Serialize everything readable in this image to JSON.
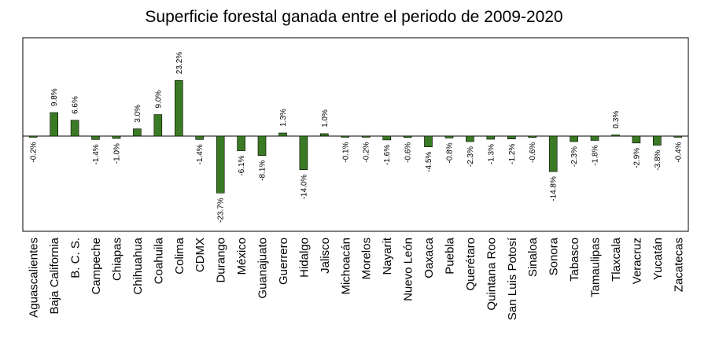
{
  "chart_data": {
    "type": "bar",
    "title": "Superficie forestal ganada entre el periodo de 2009-2020",
    "xlabel": "",
    "ylabel": "",
    "ylim": [
      -28,
      28
    ],
    "grid": false,
    "legend": "none",
    "bar_color": "#3b7a24",
    "categories": [
      "Aguascalientes",
      "Baja California",
      "B. C. S.",
      "Campeche",
      "Chiapas",
      "Chihuahua",
      "Coahuila",
      "Colima",
      "CDMX",
      "Durango",
      "México",
      "Guanajuato",
      "Guerrero",
      "Hidalgo",
      "Jalisco",
      "Michoacán",
      "Morelos",
      "Nayarit",
      "Nuevo León",
      "Oaxaca",
      "Puebla",
      "Querétaro",
      "Quintana Roo",
      "San Luis Potosí",
      "Sinaloa",
      "Sonora",
      "Tabasco",
      "Tamaulipas",
      "Tlaxcala",
      "Veracruz",
      "Yucatán",
      "Zacatecas"
    ],
    "values": [
      -0.2,
      9.8,
      6.6,
      -1.4,
      -1.0,
      3.0,
      9.0,
      23.2,
      -1.4,
      -23.7,
      -6.1,
      -8.1,
      1.3,
      -14.0,
      1.0,
      -0.1,
      -0.2,
      -1.6,
      -0.6,
      -4.5,
      -0.8,
      -2.3,
      -1.3,
      -1.2,
      -0.6,
      -14.8,
      -2.3,
      -1.8,
      0.3,
      -2.9,
      -3.8,
      -0.4
    ],
    "data_labels": [
      "-0.2%",
      "9.8%",
      "6.6%",
      "-1.4%",
      "-1.0%",
      "3.0%",
      "9.0%",
      "23.2%",
      "-1.4%",
      "-23.7%",
      "-6.1%",
      "-8.1%",
      "1.3%",
      "-14.0%",
      "1.0%",
      "-0.1%",
      "-0.2%",
      "-1.6%",
      "-0.6%",
      "-4.5%",
      "-0.8%",
      "-2.3%",
      "-1.3%",
      "-1.2%",
      "-0.6%",
      "-14.8%",
      "-2.3%",
      "-1.8%",
      "0.3%",
      "-2.9%",
      "-3.8%",
      "-0.4%"
    ]
  }
}
